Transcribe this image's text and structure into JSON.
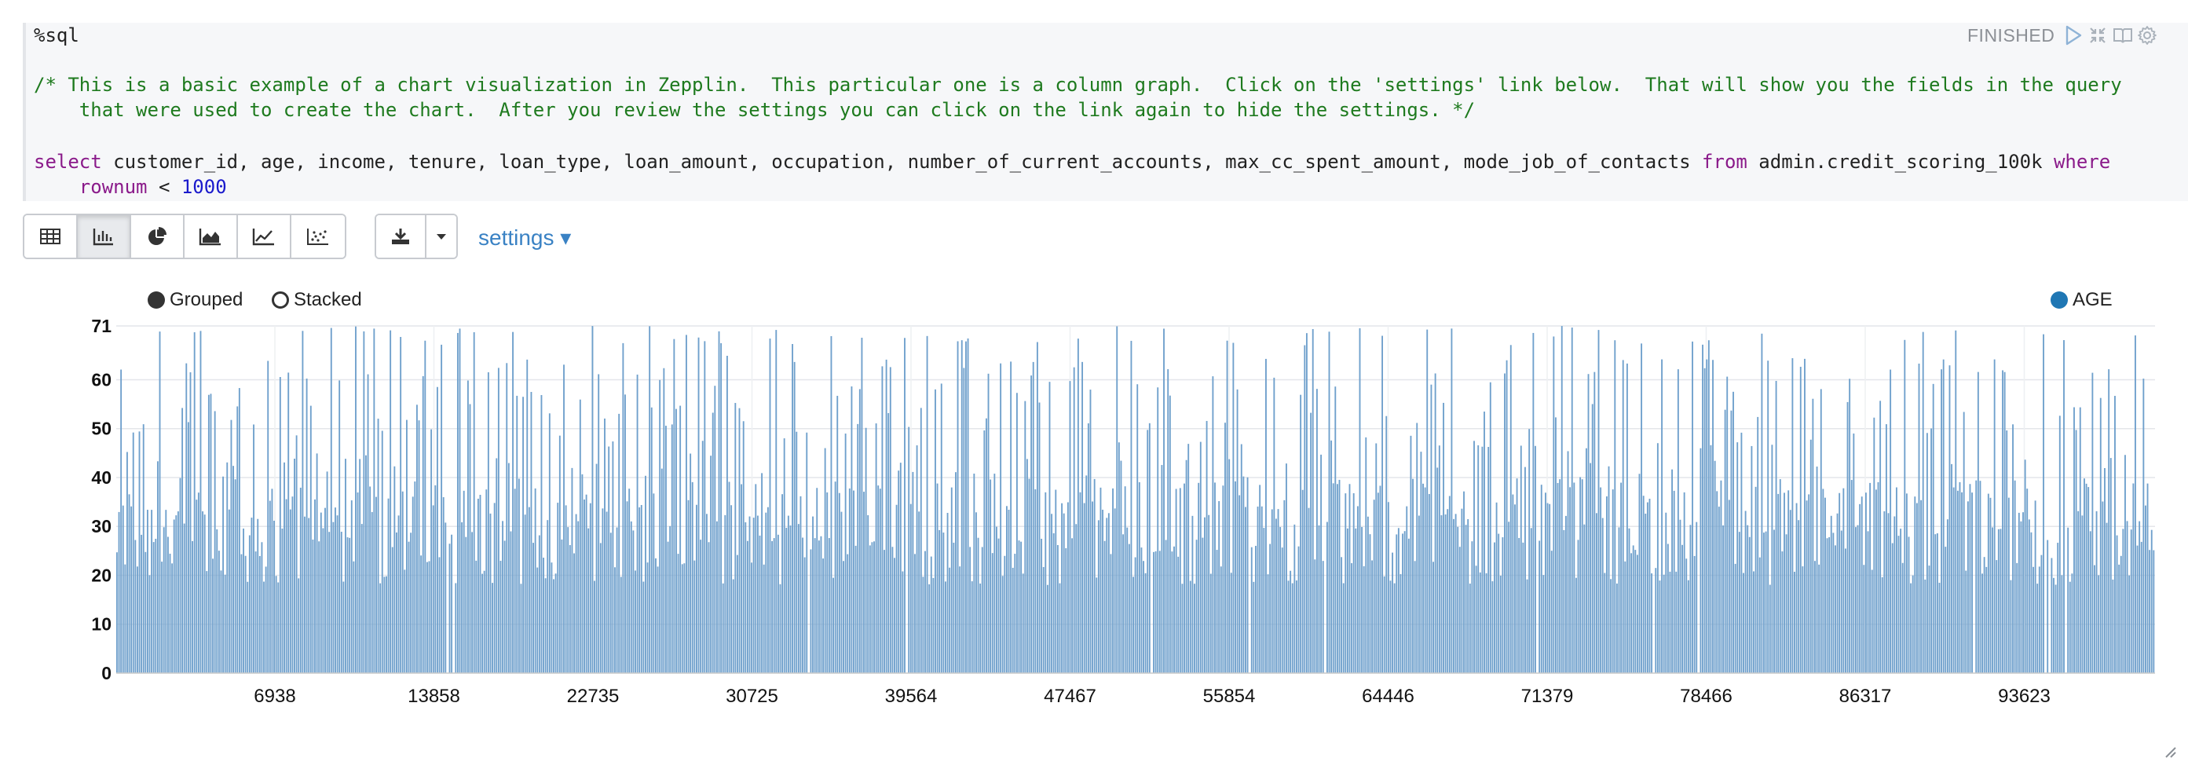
{
  "paragraph": {
    "status": "FINISHED",
    "interpreter_line": "%sql",
    "comment_line1": "/* This is a basic example of a chart visualization in Zepplin.  This particular one is a column graph.  Click on the 'settings' link below.  That will show you the fields in the query",
    "comment_line2": "    that were used to create the chart.  After you review the settings you can click on the link again to hide the settings. */",
    "query_kw_select": "select",
    "query_fields": " customer_id, age, income, tenure, loan_type, loan_amount, occupation, number_of_current_accounts, max_cc_spent_amount, mode_job_of_contacts ",
    "query_kw_from": "from",
    "query_table": " admin.credit_scoring_100k ",
    "query_kw_where": "where",
    "query_line2_indent": "    ",
    "query_col": "rownum",
    "query_op": " < ",
    "query_num": "1000",
    "icons": [
      "run-icon",
      "expand-collapse-icon",
      "book-icon",
      "gear-icon"
    ]
  },
  "toolbar": {
    "vis_buttons": [
      "table-icon",
      "bar-chart-icon",
      "pie-chart-icon",
      "area-chart-icon",
      "line-chart-icon",
      "scatter-chart-icon"
    ],
    "active_index": 1,
    "download_icon": "download-icon",
    "caret_icon": "caret-down-icon",
    "settings_label": "settings ▾"
  },
  "legend": {
    "grouped_label": "Grouped",
    "stacked_label": "Stacked",
    "series_label": "AGE",
    "series_color": "#1f77b4"
  },
  "chart_data": {
    "type": "bar",
    "mode": "grouped",
    "series": [
      {
        "name": "AGE",
        "color": "#6fa0cc"
      }
    ],
    "y_ticks": [
      0,
      10,
      20,
      30,
      40,
      50,
      60,
      71
    ],
    "ylim": [
      0,
      71
    ],
    "x_tick_labels": [
      "6938",
      "13858",
      "22735",
      "30725",
      "39564",
      "47467",
      "55854",
      "64446",
      "71379",
      "78466",
      "86317",
      "93623"
    ],
    "bar_count": 999,
    "value_range": [
      18,
      71
    ],
    "grid": true
  }
}
